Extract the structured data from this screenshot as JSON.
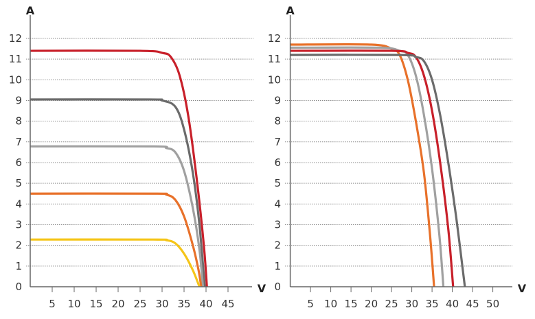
{
  "chart_data": [
    {
      "type": "line",
      "xlabel": "V",
      "ylabel": "A",
      "xlim": [
        0,
        50
      ],
      "ylim": [
        0,
        12
      ],
      "x_ticks": [
        "5",
        "10",
        "15",
        "20",
        "25",
        "30",
        "35",
        "40",
        "45"
      ],
      "y_ticks": [
        "0",
        "1",
        "2",
        "3",
        "4",
        "5",
        "6",
        "7",
        "8",
        "9",
        "10",
        "11",
        "12"
      ],
      "grid": "horizontal dotted",
      "series": [
        {
          "color": "#c8202a",
          "points": [
            [
              0,
              11.4
            ],
            [
              25,
              11.4
            ],
            [
              30,
              11.3
            ],
            [
              32,
              11.1
            ],
            [
              34,
              10.2
            ],
            [
              36,
              8.2
            ],
            [
              38,
              5.0
            ],
            [
              39.5,
              2.0
            ],
            [
              40.2,
              0
            ]
          ]
        },
        {
          "color": "#6b6b6b",
          "points": [
            [
              0,
              9.05
            ],
            [
              27,
              9.05
            ],
            [
              30,
              9.0
            ],
            [
              33,
              8.7
            ],
            [
              35,
              7.6
            ],
            [
              37,
              5.5
            ],
            [
              38.5,
              3.0
            ],
            [
              39.7,
              0
            ]
          ]
        },
        {
          "color": "#a0a0a0",
          "points": [
            [
              0,
              6.78
            ],
            [
              28,
              6.78
            ],
            [
              31,
              6.7
            ],
            [
              33,
              6.5
            ],
            [
              35,
              5.6
            ],
            [
              37,
              3.8
            ],
            [
              38.5,
              1.8
            ],
            [
              39.3,
              0
            ]
          ]
        },
        {
          "color": "#e8712a",
          "points": [
            [
              0,
              4.5
            ],
            [
              28,
              4.5
            ],
            [
              31,
              4.45
            ],
            [
              33,
              4.2
            ],
            [
              35,
              3.4
            ],
            [
              37,
              2.0
            ],
            [
              38.3,
              0.8
            ],
            [
              38.9,
              0
            ]
          ]
        },
        {
          "color": "#f5c518",
          "points": [
            [
              0,
              2.28
            ],
            [
              28,
              2.28
            ],
            [
              31,
              2.25
            ],
            [
              33,
              2.1
            ],
            [
              35,
              1.6
            ],
            [
              37,
              0.8
            ],
            [
              38.5,
              0
            ]
          ]
        }
      ]
    },
    {
      "type": "line",
      "xlabel": "V",
      "ylabel": "A",
      "xlim": [
        0,
        55
      ],
      "ylim": [
        0,
        12
      ],
      "x_ticks": [
        "5",
        "10",
        "15",
        "20",
        "25",
        "30",
        "35",
        "40",
        "45",
        "50"
      ],
      "y_ticks": [
        "0",
        "1",
        "2",
        "3",
        "4",
        "5",
        "6",
        "7",
        "8",
        "9",
        "10",
        "11",
        "12"
      ],
      "grid": "horizontal dotted",
      "series": [
        {
          "color": "#e8712a",
          "points": [
            [
              0,
              11.7
            ],
            [
              20,
              11.7
            ],
            [
              25,
              11.5
            ],
            [
              27,
              11.2
            ],
            [
              29,
              10.0
            ],
            [
              31,
              8.0
            ],
            [
              33,
              5.5
            ],
            [
              34.5,
              2.5
            ],
            [
              35.5,
              0
            ]
          ]
        },
        {
          "color": "#a0a0a0",
          "points": [
            [
              0,
              11.55
            ],
            [
              22,
              11.55
            ],
            [
              27,
              11.4
            ],
            [
              29,
              11.2
            ],
            [
              31,
              10.2
            ],
            [
              33,
              8.3
            ],
            [
              35,
              5.7
            ],
            [
              36.8,
              2.5
            ],
            [
              37.8,
              0
            ]
          ]
        },
        {
          "color": "#c8202a",
          "points": [
            [
              0,
              11.4
            ],
            [
              25,
              11.4
            ],
            [
              29,
              11.3
            ],
            [
              31,
              11.1
            ],
            [
              33,
              10.2
            ],
            [
              35,
              8.5
            ],
            [
              37,
              6.0
            ],
            [
              39,
              2.8
            ],
            [
              40.2,
              0
            ]
          ]
        },
        {
          "color": "#6b6b6b",
          "points": [
            [
              0,
              11.2
            ],
            [
              27,
              11.2
            ],
            [
              31,
              11.1
            ],
            [
              33,
              10.9
            ],
            [
              35,
              10.0
            ],
            [
              37,
              8.3
            ],
            [
              39,
              6.0
            ],
            [
              41,
              3.3
            ],
            [
              43.1,
              0
            ]
          ]
        }
      ]
    }
  ]
}
